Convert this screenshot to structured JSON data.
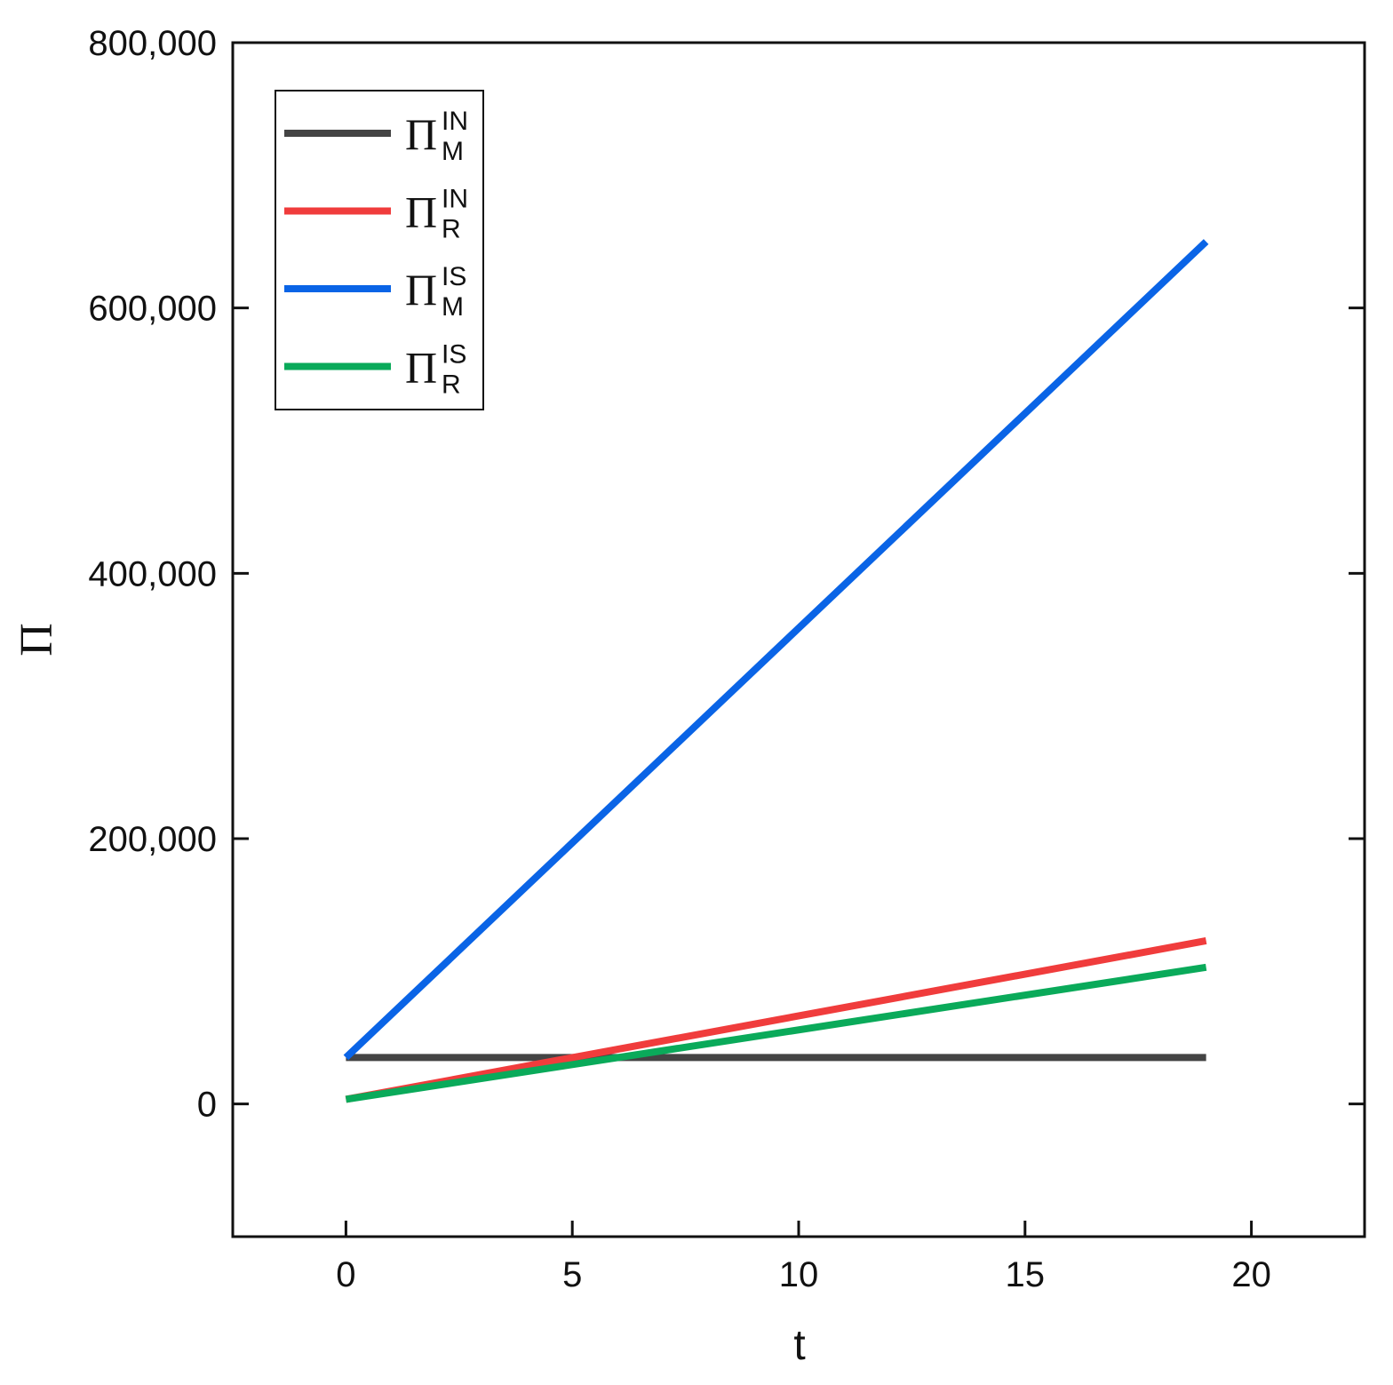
{
  "chart_data": {
    "type": "line",
    "x_label": "t",
    "y_label": "Π",
    "x": [
      0,
      19
    ],
    "series": [
      {
        "name": "Π",
        "superscript": "IN",
        "subscript": "M",
        "color": "#444444",
        "values": [
          35000,
          35000
        ]
      },
      {
        "name": "Π",
        "superscript": "IN",
        "subscript": "R",
        "color": "#f03c3c",
        "values": [
          3500,
          123000
        ]
      },
      {
        "name": "Π",
        "superscript": "IS",
        "subscript": "M",
        "color": "#0a64e6",
        "values": [
          35000,
          650000
        ]
      },
      {
        "name": "Π",
        "superscript": "IS",
        "subscript": "R",
        "color": "#0aaa5a",
        "values": [
          3500,
          103000
        ]
      }
    ],
    "xlim": [
      -2.5,
      22.5
    ],
    "xticks": [
      0,
      5,
      10,
      15,
      20
    ],
    "ylim": [
      -100000,
      800000
    ],
    "yticks": [
      0,
      {
        "value": 200000,
        "label": "200,000"
      },
      {
        "value": 400000,
        "label": "400,000"
      },
      {
        "value": 600000,
        "label": "600,000"
      },
      {
        "value": 800000,
        "label": "800,000"
      }
    ],
    "legend": "upper-left",
    "grid": false
  }
}
